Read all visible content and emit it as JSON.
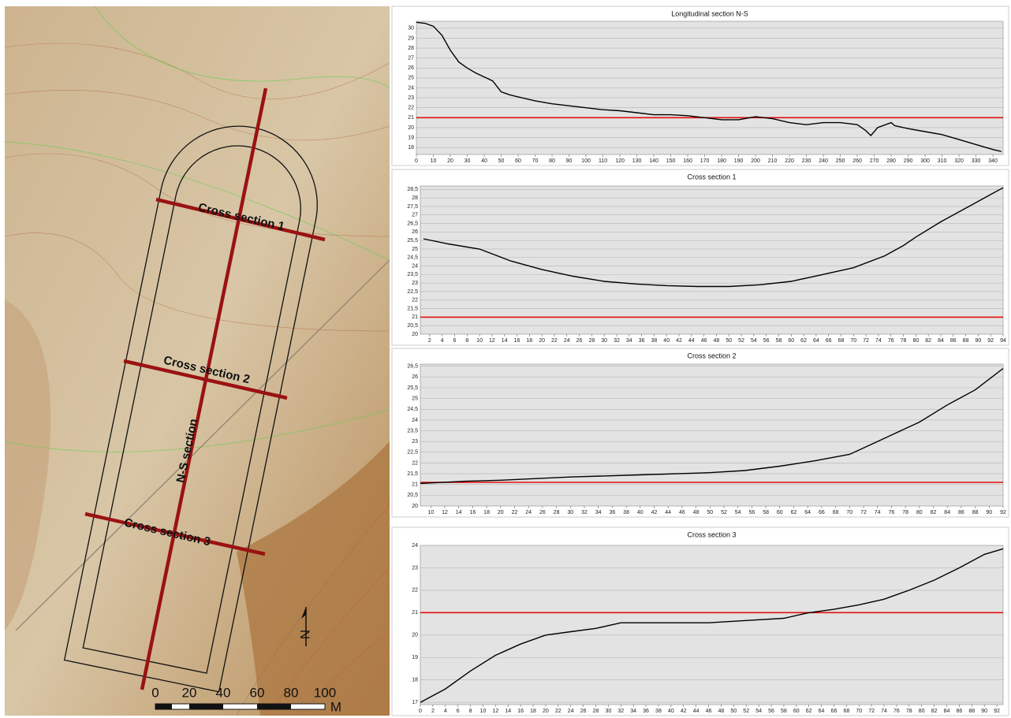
{
  "chart_data": [
    {
      "type": "line",
      "title": "Longitudinal section N-S",
      "x": [
        0,
        5,
        10,
        15,
        20,
        25,
        30,
        35,
        40,
        45,
        50,
        55,
        60,
        70,
        80,
        90,
        100,
        110,
        120,
        130,
        140,
        150,
        160,
        170,
        180,
        190,
        200,
        210,
        220,
        230,
        240,
        250,
        260,
        265,
        268,
        272,
        280,
        282,
        290,
        300,
        310,
        320,
        330,
        340,
        345
      ],
      "values": [
        30.6,
        30.5,
        30.2,
        29.3,
        27.8,
        26.6,
        26,
        25.5,
        25.1,
        24.7,
        23.6,
        23.3,
        23.1,
        22.7,
        22.4,
        22.2,
        22,
        21.8,
        21.7,
        21.5,
        21.3,
        21.3,
        21.2,
        21,
        20.8,
        20.8,
        21.1,
        20.9,
        20.5,
        20.3,
        20.5,
        20.5,
        20.3,
        19.7,
        19.2,
        20,
        20.5,
        20.2,
        19.9,
        19.6,
        19.3,
        18.8,
        18.3,
        17.8,
        17.6
      ],
      "color": "#000000",
      "reference_line": 21,
      "reference_color": "#e01010",
      "xlim": [
        0,
        346
      ],
      "ylim": [
        17.3,
        30.7
      ],
      "xticks": [
        0,
        10,
        20,
        30,
        40,
        50,
        60,
        70,
        80,
        90,
        100,
        110,
        120,
        130,
        140,
        150,
        160,
        170,
        180,
        190,
        200,
        210,
        220,
        230,
        240,
        250,
        260,
        270,
        280,
        290,
        300,
        310,
        320,
        330,
        340
      ],
      "yticks": [
        18,
        19,
        20,
        21,
        22,
        23,
        24,
        25,
        26,
        27,
        28,
        29,
        30
      ],
      "grid": true
    },
    {
      "type": "line",
      "title": "Cross section 1",
      "x": [
        1,
        5,
        10,
        15,
        20,
        25,
        30,
        35,
        40,
        45,
        50,
        55,
        60,
        65,
        70,
        75,
        78,
        80,
        84,
        88,
        92,
        94
      ],
      "values": [
        25.6,
        25.3,
        25.0,
        24.3,
        23.8,
        23.4,
        23.1,
        22.95,
        22.85,
        22.8,
        22.8,
        22.9,
        23.1,
        23.5,
        23.9,
        24.6,
        25.2,
        25.7,
        26.6,
        27.4,
        28.2,
        28.6
      ],
      "color": "#000000",
      "reference_line": 21,
      "reference_color": "#e01010",
      "xlim": [
        0.5,
        94
      ],
      "ylim": [
        20,
        28.7
      ],
      "xticks": [
        2,
        4,
        6,
        8,
        10,
        12,
        14,
        16,
        18,
        20,
        22,
        24,
        26,
        28,
        30,
        32,
        34,
        36,
        38,
        40,
        42,
        44,
        46,
        48,
        50,
        52,
        54,
        56,
        58,
        60,
        62,
        64,
        66,
        68,
        70,
        72,
        74,
        76,
        78,
        80,
        82,
        84,
        86,
        88,
        90,
        92,
        94
      ],
      "yticks": [
        20,
        {
          "value": 20.5,
          "label": "20,5"
        },
        21,
        {
          "value": 21.5,
          "label": "21,5"
        },
        22,
        {
          "value": 22.5,
          "label": "22,5"
        },
        23,
        {
          "value": 23.5,
          "label": "23,5"
        },
        24,
        {
          "value": 24.5,
          "label": "24,5"
        },
        25,
        {
          "value": 25.5,
          "label": "25,5"
        },
        26,
        {
          "value": 26.5,
          "label": "26,5"
        },
        27,
        {
          "value": 27.5,
          "label": "27,5"
        },
        28,
        {
          "value": 28.5,
          "label": "28,5"
        }
      ],
      "grid": true
    },
    {
      "type": "line",
      "title": "Cross section 2",
      "x": [
        8.5,
        15,
        20,
        30,
        40,
        50,
        55,
        60,
        65,
        70,
        72,
        76,
        80,
        84,
        88,
        92
      ],
      "values": [
        21.05,
        21.15,
        21.2,
        21.35,
        21.45,
        21.55,
        21.65,
        21.85,
        22.1,
        22.4,
        22.7,
        23.3,
        23.9,
        24.7,
        25.4,
        26.4
      ],
      "color": "#000000",
      "reference_line": 21.1,
      "reference_color": "#e01010",
      "xlim": [
        8.5,
        92
      ],
      "ylim": [
        20,
        26.6
      ],
      "xticks": [
        10,
        12,
        14,
        16,
        18,
        20,
        22,
        24,
        26,
        28,
        30,
        32,
        34,
        36,
        38,
        40,
        42,
        44,
        46,
        48,
        50,
        52,
        54,
        56,
        58,
        60,
        62,
        64,
        66,
        68,
        70,
        72,
        74,
        76,
        78,
        80,
        82,
        84,
        86,
        88,
        90,
        92
      ],
      "yticks": [
        20,
        {
          "value": 20.5,
          "label": "20,5"
        },
        21,
        {
          "value": 21.5,
          "label": "21,5"
        },
        22,
        {
          "value": 22.5,
          "label": "22,5"
        },
        23,
        {
          "value": 23.5,
          "label": "23,5"
        },
        24,
        {
          "value": 24.5,
          "label": "24,5"
        },
        25,
        {
          "value": 25.5,
          "label": "25,5"
        },
        26,
        {
          "value": 26.5,
          "label": "26,5"
        }
      ],
      "grid": true
    },
    {
      "type": "line",
      "title": "Cross section 3",
      "x": [
        0,
        4,
        8,
        12,
        16,
        20,
        24,
        28,
        32,
        36,
        40,
        46,
        52,
        58,
        62,
        66,
        70,
        74,
        78,
        82,
        86,
        90,
        93
      ],
      "values": [
        17,
        17.6,
        18.4,
        19.1,
        19.6,
        20,
        20.15,
        20.3,
        20.55,
        20.55,
        20.55,
        20.55,
        20.65,
        20.75,
        21,
        21.15,
        21.35,
        21.6,
        22,
        22.45,
        23,
        23.6,
        23.85
      ],
      "color": "#000000",
      "reference_line": 21,
      "reference_color": "#e01010",
      "xlim": [
        0,
        93
      ],
      "ylim": [
        16.9,
        24
      ],
      "xticks": [
        0,
        2,
        4,
        6,
        8,
        10,
        12,
        14,
        16,
        18,
        20,
        22,
        24,
        26,
        28,
        30,
        32,
        34,
        36,
        38,
        40,
        42,
        44,
        46,
        48,
        50,
        52,
        54,
        56,
        58,
        60,
        62,
        64,
        66,
        68,
        70,
        72,
        74,
        76,
        78,
        80,
        82,
        84,
        86,
        88,
        90,
        92
      ],
      "yticks": [
        17,
        18,
        19,
        20,
        21,
        22,
        23,
        24
      ],
      "grid": true
    }
  ],
  "map": {
    "sections": [
      "Cross section 1",
      "Cross section 2",
      "Cross section 3",
      "N-S section"
    ],
    "scale_labels": [
      "0",
      "20",
      "40",
      "60",
      "80",
      "100"
    ],
    "scale_unit": "M",
    "north": "N"
  }
}
